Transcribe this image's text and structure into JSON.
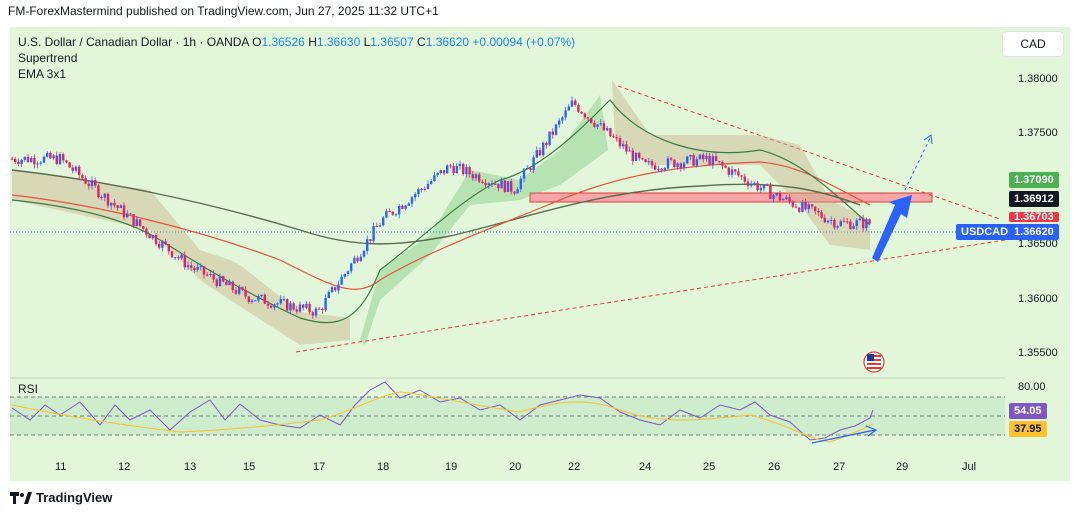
{
  "header": {
    "published": "FM-ForexMastermind published on TradingView.com, Jun 27, 2025 11:32 UTC+1"
  },
  "legend": {
    "symbol_line": "U.S. Dollar / Canadian Dollar · 1h · OANDA",
    "o_label": "O",
    "o_value": "1.36526",
    "h_label": "H",
    "h_value": "1.36630",
    "l_label": "L",
    "l_value": "1.36507",
    "c_label": "C",
    "c_value": "1.36620",
    "change": "+0.00094 (+0.07%)",
    "indicator1": "Supertrend",
    "indicator2": "EMA 3x1"
  },
  "currency_button": "CAD",
  "price_axis": {
    "ticks": [
      "1.38000",
      "1.37500",
      "1.36500",
      "1.36000",
      "1.35500"
    ],
    "tag_1": {
      "text": "1.37090",
      "color": "#4caf50"
    },
    "tag_2": {
      "text": "1.36912",
      "color": "#131722"
    },
    "tag_3": {
      "text": "1.36703",
      "color": "#f23645"
    },
    "symbol_tag": {
      "text": "USDCAD",
      "color": "#2962ff"
    },
    "last_tag": {
      "text": "1.36620",
      "color": "#2962ff"
    }
  },
  "time_axis": [
    "11",
    "12",
    "13",
    "15",
    "17",
    "18",
    "19",
    "20",
    "22",
    "24",
    "25",
    "26",
    "27",
    "29",
    "Jul"
  ],
  "rsi": {
    "title": "RSI",
    "upper": "80.00",
    "tag_value": {
      "text": "54.05",
      "color": "#7e57c2"
    },
    "tag_ma": {
      "text": "37.95",
      "color": "#fbc02d"
    }
  },
  "footer": {
    "brand": "TradingView"
  },
  "chart_data": {
    "type": "line",
    "title": "U.S. Dollar / Canadian Dollar · 1h · OANDA",
    "x": [
      "11",
      "12",
      "13",
      "15",
      "17",
      "18",
      "19",
      "20",
      "22",
      "24",
      "25",
      "26",
      "27"
    ],
    "series": [
      {
        "name": "USDCAD",
        "values": [
          1.3725,
          1.3672,
          1.362,
          1.359,
          1.3575,
          1.3665,
          1.3718,
          1.3695,
          1.378,
          1.3718,
          1.3725,
          1.369,
          1.3662
        ]
      }
    ],
    "ylim": [
      1.353,
      1.381
    ],
    "resistance_zone": [
      1.3688,
      1.3694
    ],
    "grid": false
  }
}
